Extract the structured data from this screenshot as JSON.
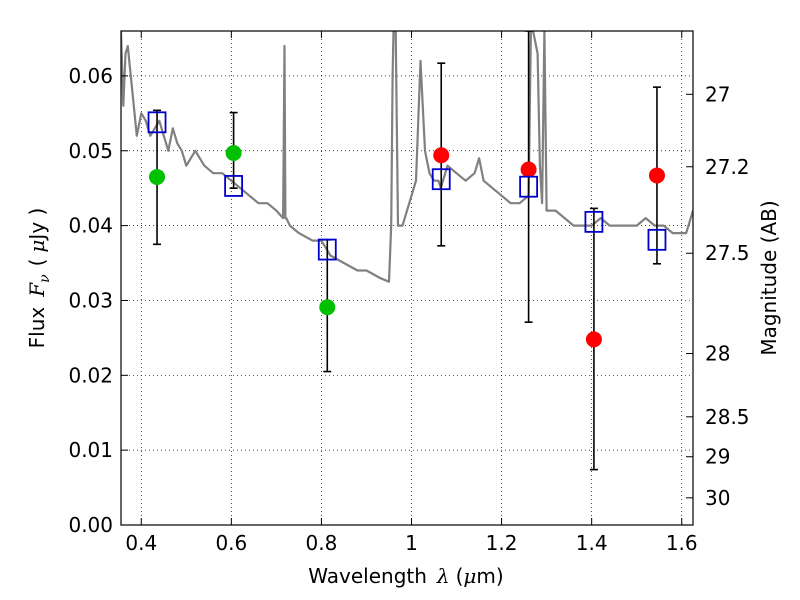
{
  "chart_data": {
    "type": "scatter",
    "xlabel_text": "Wavelength",
    "xlabel_symbol": "λ",
    "xlabel_unit_open": "(",
    "xlabel_unit_mu": "μ",
    "xlabel_unit_rest": "m)",
    "ylabel_text": "Flux",
    "ylabel_symbol": "F",
    "ylabel_subscript": "ν",
    "ylabel_unit_open": "(",
    "ylabel_unit_mu": "μ",
    "ylabel_unit_rest": "Jy )",
    "y2label": "Magnitude (AB)",
    "xlim": [
      0.355,
      1.625
    ],
    "ylim": [
      0.0,
      0.066
    ],
    "grid": true,
    "x_ticks": [
      0.4,
      0.6,
      0.8,
      1.0,
      1.2,
      1.4,
      1.6
    ],
    "x_tick_labels": [
      "0.4",
      "0.6",
      "0.8",
      "1",
      "1.2",
      "1.4",
      "1.6"
    ],
    "y_ticks": [
      0.0,
      0.01,
      0.02,
      0.03,
      0.04,
      0.05,
      0.06
    ],
    "y_tick_labels": [
      "0.00",
      "0.01",
      "0.02",
      "0.03",
      "0.04",
      "0.05",
      "0.06"
    ],
    "y2_ticks": [
      27,
      27.2,
      27.5,
      28,
      28.5,
      29,
      30
    ],
    "y2_tick_labels": [
      "27",
      "27.2",
      "27.5",
      "28",
      "28.5",
      "29",
      "30"
    ],
    "colors": {
      "spectrum": "#808080",
      "green": "#00c000",
      "red": "#ff0000",
      "model": "#0000cc",
      "errorbar": "#000000"
    },
    "series": [
      {
        "name": "spectrum",
        "kind": "line",
        "x": [
          0.355,
          0.36,
          0.365,
          0.37,
          0.375,
          0.38,
          0.39,
          0.4,
          0.41,
          0.42,
          0.43,
          0.44,
          0.45,
          0.46,
          0.47,
          0.48,
          0.49,
          0.5,
          0.52,
          0.54,
          0.56,
          0.58,
          0.6,
          0.62,
          0.64,
          0.66,
          0.68,
          0.7,
          0.715,
          0.718,
          0.72,
          0.722,
          0.73,
          0.75,
          0.78,
          0.8,
          0.82,
          0.85,
          0.88,
          0.9,
          0.93,
          0.95,
          0.955,
          0.958,
          0.96,
          0.965,
          0.97,
          0.98,
          1.0,
          1.01,
          1.02,
          1.03,
          1.04,
          1.05,
          1.06,
          1.065,
          1.07,
          1.08,
          1.1,
          1.12,
          1.14,
          1.15,
          1.16,
          1.18,
          1.2,
          1.22,
          1.24,
          1.26,
          1.265,
          1.27,
          1.28,
          1.285,
          1.29,
          1.295,
          1.3,
          1.32,
          1.34,
          1.36,
          1.38,
          1.4,
          1.42,
          1.44,
          1.46,
          1.48,
          1.5,
          1.52,
          1.54,
          1.56,
          1.58,
          1.6,
          1.61,
          1.625
        ],
        "y": [
          0.066,
          0.056,
          0.063,
          0.064,
          0.061,
          0.058,
          0.052,
          0.055,
          0.054,
          0.052,
          0.053,
          0.054,
          0.052,
          0.05,
          0.053,
          0.051,
          0.05,
          0.048,
          0.05,
          0.048,
          0.047,
          0.047,
          0.046,
          0.045,
          0.044,
          0.043,
          0.043,
          0.042,
          0.041,
          0.064,
          0.041,
          0.041,
          0.04,
          0.039,
          0.038,
          0.038,
          0.036,
          0.035,
          0.034,
          0.034,
          0.033,
          0.0325,
          0.04,
          0.06,
          0.066,
          0.066,
          0.04,
          0.04,
          0.044,
          0.046,
          0.062,
          0.05,
          0.047,
          0.046,
          0.046,
          0.045,
          0.046,
          0.048,
          0.047,
          0.046,
          0.047,
          0.049,
          0.046,
          0.045,
          0.044,
          0.043,
          0.043,
          0.044,
          0.066,
          0.066,
          0.063,
          0.048,
          0.043,
          0.066,
          0.042,
          0.042,
          0.041,
          0.04,
          0.04,
          0.04,
          0.041,
          0.04,
          0.04,
          0.04,
          0.04,
          0.041,
          0.04,
          0.04,
          0.039,
          0.039,
          0.039,
          0.042
        ]
      },
      {
        "name": "observed-green",
        "kind": "scatter",
        "x": [
          0.435,
          0.605,
          0.813
        ],
        "y": [
          0.0465,
          0.0497,
          0.0291
        ],
        "err_low": [
          0.0375,
          0.045,
          0.0205
        ],
        "err_high": [
          0.0554,
          0.0551,
          0.0381
        ]
      },
      {
        "name": "observed-red",
        "kind": "scatter",
        "x": [
          1.066,
          1.26,
          1.405,
          1.545
        ],
        "y": [
          0.0494,
          0.0475,
          0.0248,
          0.0467
        ],
        "err_low": [
          0.0373,
          0.0271,
          0.0074,
          0.0349
        ],
        "err_high": [
          0.0617,
          0.066,
          0.0423,
          0.0585
        ]
      },
      {
        "name": "model-boxes",
        "kind": "scatter",
        "x": [
          0.435,
          0.605,
          0.813,
          1.066,
          1.26,
          1.405,
          1.545
        ],
        "y": [
          0.0538,
          0.0453,
          0.0368,
          0.0462,
          0.0452,
          0.0405,
          0.0381
        ]
      }
    ]
  }
}
